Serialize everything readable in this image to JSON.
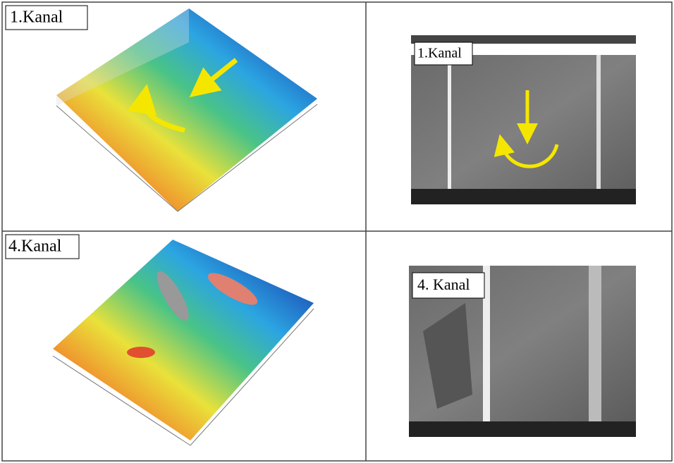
{
  "panels": [
    {
      "label": "1.Kanal"
    },
    {
      "label": "1.Kanal"
    },
    {
      "label": "4.Kanal"
    },
    {
      "label": "4. Kanal"
    }
  ]
}
